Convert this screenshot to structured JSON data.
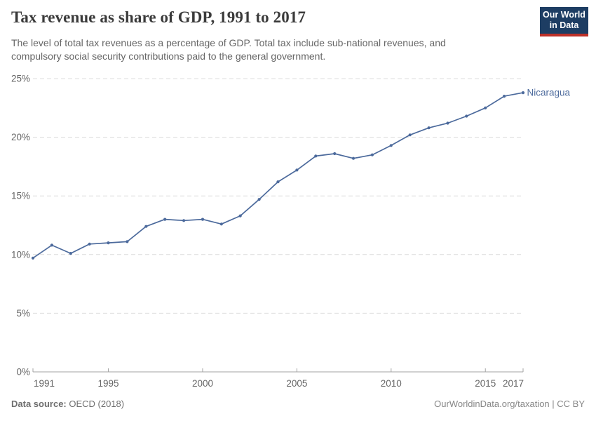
{
  "header": {
    "title": "Tax revenue as share of GDP, 1991 to 2017",
    "subtitle_line1": "The level of total tax revenues as a percentage of GDP. Total tax include sub-national revenues, and",
    "subtitle_line2": "compulsory social security contributions paid to the general government.",
    "logo": {
      "line1": "Our World",
      "line2": "in Data",
      "bg_color": "#1d3d63",
      "bar_color": "#bc3028",
      "text_color": "#ffffff"
    }
  },
  "chart_data": {
    "type": "line",
    "title": "Tax revenue as share of GDP, 1991 to 2017",
    "xlabel": "",
    "ylabel": "",
    "xlim": [
      1991,
      2017
    ],
    "ylim": [
      0,
      25
    ],
    "yticks": [
      0,
      5,
      10,
      15,
      20,
      25
    ],
    "ytick_suffix": "%",
    "xticks": [
      1991,
      1995,
      2000,
      2005,
      2010,
      2015,
      2017
    ],
    "grid": "horizontal-dashed",
    "legend_position": "end-of-line-label",
    "series": [
      {
        "name": "Nicaragua",
        "color": "#4c6a9c",
        "x": [
          1991,
          1992,
          1993,
          1994,
          1995,
          1996,
          1997,
          1998,
          1999,
          2000,
          2001,
          2002,
          2003,
          2004,
          2005,
          2006,
          2007,
          2008,
          2009,
          2010,
          2011,
          2012,
          2013,
          2014,
          2015,
          2016,
          2017
        ],
        "values": [
          9.7,
          10.8,
          10.1,
          10.9,
          11.0,
          11.1,
          12.4,
          13.0,
          12.9,
          13.0,
          12.6,
          13.3,
          14.7,
          16.2,
          17.2,
          18.4,
          18.6,
          18.2,
          18.5,
          19.3,
          20.2,
          20.8,
          21.2,
          21.8,
          22.5,
          23.5,
          23.8
        ]
      }
    ]
  },
  "footer": {
    "source_label": "Data source:",
    "source_value": " OECD (2018)",
    "credit": "OurWorldinData.org/taxation | CC BY"
  }
}
